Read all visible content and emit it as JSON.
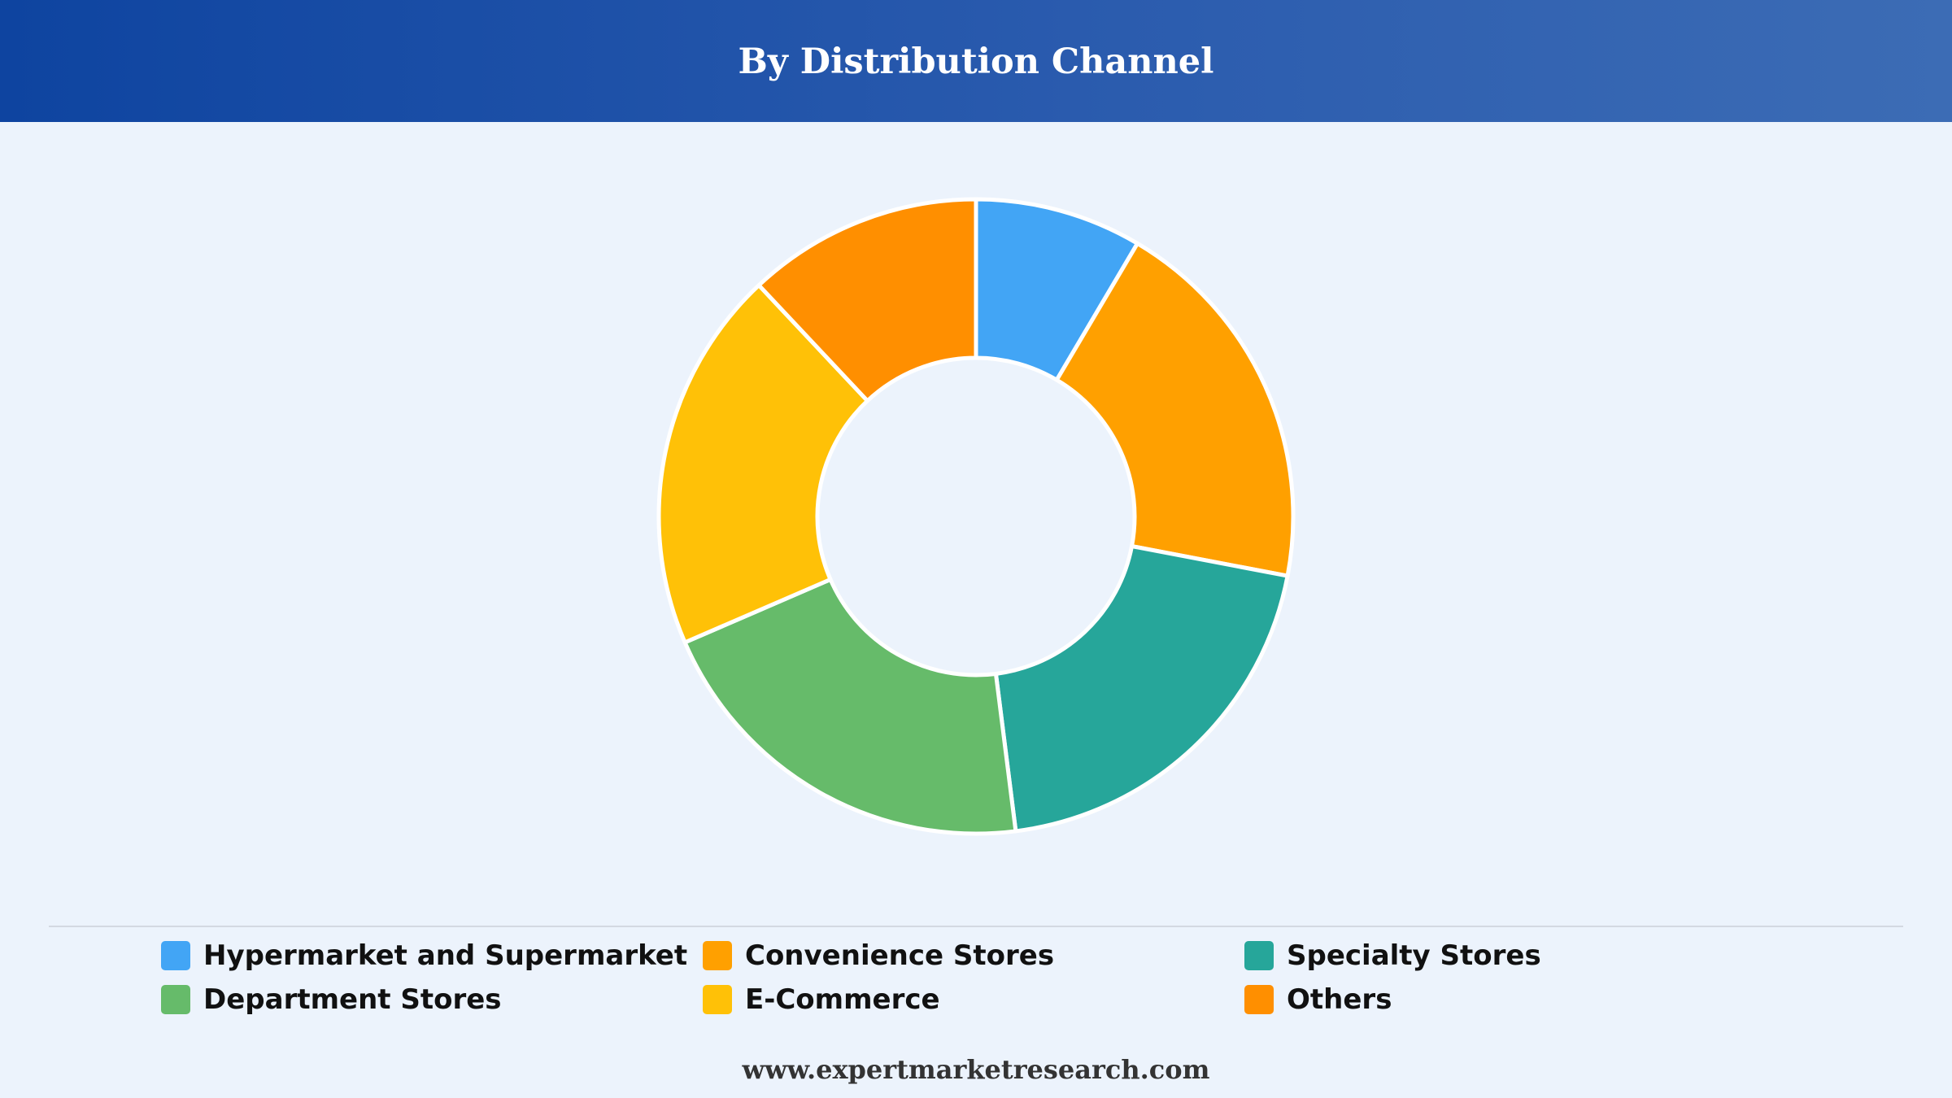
{
  "header": {
    "title": "By Distribution Channel"
  },
  "chart_data": {
    "type": "pie",
    "title": "By Distribution Channel",
    "donut": true,
    "legend_position": "bottom",
    "categories": [
      "Hypermarket and Supermarket",
      "Convenience Stores",
      "Specialty Stores",
      "Department Stores",
      "E-Commerce",
      "Others"
    ],
    "values": [
      8.5,
      19.5,
      20,
      20.5,
      19.5,
      12
    ],
    "colors": [
      "#42a5f5",
      "#ffa000",
      "#26a69a",
      "#66bb6a",
      "#ffc107",
      "#ff8f00"
    ]
  },
  "footer": {
    "url": "www.expertmarketresearch.com"
  }
}
